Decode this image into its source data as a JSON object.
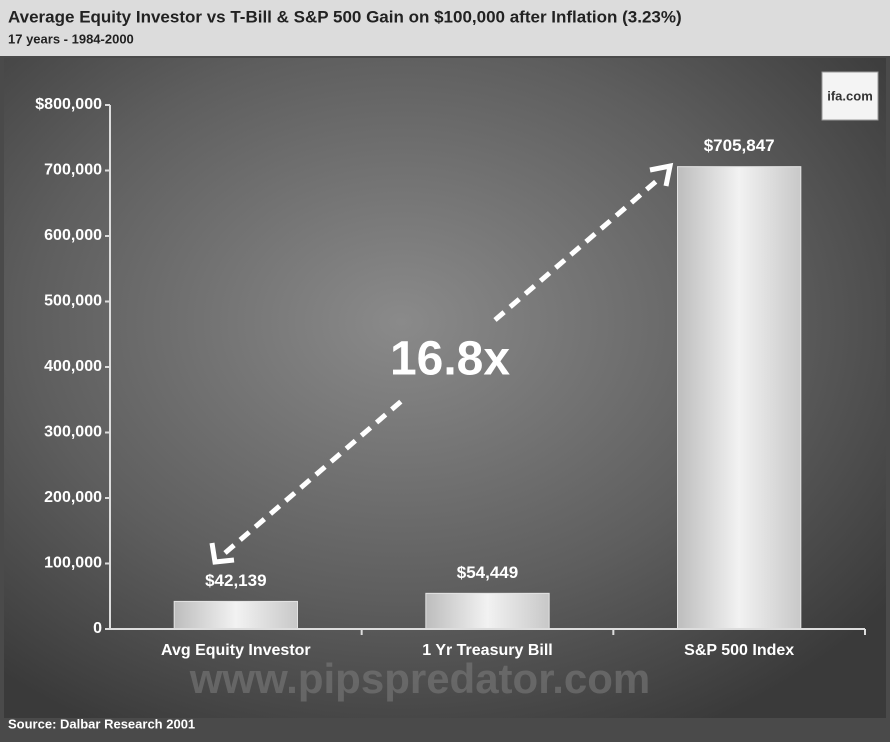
{
  "chart_data": {
    "type": "bar",
    "title": "Average Equity Investor vs T-Bill & S&P 500 Gain on $100,000 after Inflation (3.23%)",
    "subtitle": "17 years - 1984-2000",
    "categories": [
      "Avg Equity Investor",
      "1 Yr Treasury Bill",
      "S&P 500 Index"
    ],
    "values": [
      42139,
      54449,
      705847
    ],
    "value_labels": [
      "$42,139",
      "$54,449",
      "$705,847"
    ],
    "color": "#e4e4e4",
    "ylim": [
      0,
      800000
    ],
    "yticks": [
      0,
      {
        "value": 100000,
        "label": "100,000"
      },
      {
        "value": 200000,
        "label": "200,000"
      },
      {
        "value": 300000,
        "label": "300,000"
      },
      {
        "value": 400000,
        "label": "400,000"
      },
      {
        "value": 500000,
        "label": "500,000"
      },
      {
        "value": 600000,
        "label": "600,000"
      },
      {
        "value": 700000,
        "label": "700,000"
      },
      {
        "value": 800000,
        "label": "$800,000"
      }
    ],
    "grid": false,
    "annotation": "16.8x",
    "source": "Source: Dalbar Research 2001",
    "logo": "ifa.com",
    "watermark": "www.pipspredator.com"
  }
}
